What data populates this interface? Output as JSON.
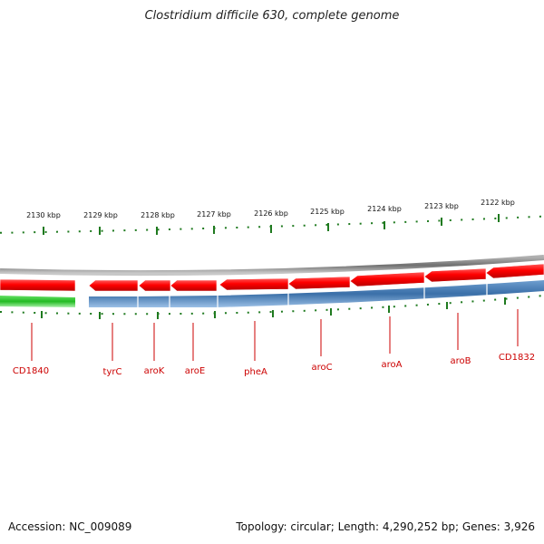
{
  "title": "Clostridium difficile 630, complete genome",
  "footer": {
    "accession": "Accession: NC_009089",
    "summary": "Topology: circular; Length: 4,290,252 bp; Genes: 3,926"
  },
  "ruler_labels": [
    "2130 kbp",
    "2129 kbp",
    "2128 kbp",
    "2127 kbp",
    "2126 kbp",
    "2125 kbp",
    "2124 kbp",
    "2123 kbp",
    "2122 kbp"
  ],
  "gene_labels": [
    "CD1840",
    "tyrC",
    "aroK",
    "aroE",
    "pheA",
    "aroC",
    "aroA",
    "aroB",
    "CD1832"
  ],
  "colors": {
    "forward_track": "#ff0000",
    "cds_track": "#3a6fa8",
    "green_track": "#33cc33",
    "backbone": "#8a8a8a",
    "tick": "#1f7a1f",
    "gene_label": "#cc0000"
  }
}
